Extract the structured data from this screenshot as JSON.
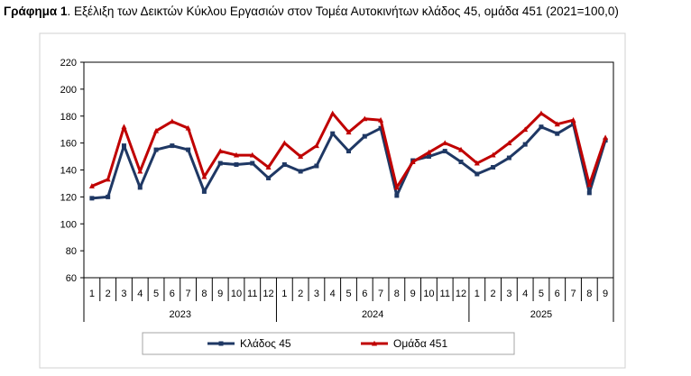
{
  "caption": {
    "label": "Γράφημα 1",
    "text": ". Εξέλιξη των Δεικτών Κύκλου Εργασιών στον Τομέα Αυτοκινήτων κλάδος 45, ομάδα 451 (2021=100,0)"
  },
  "chart_data": {
    "type": "line",
    "title": "",
    "xlabel": "",
    "ylabel": "",
    "ylim": [
      60,
      220
    ],
    "yticks": [
      60,
      80,
      100,
      120,
      140,
      160,
      180,
      200,
      220
    ],
    "grid": false,
    "legend_position": "bottom",
    "categories": [
      "1",
      "2",
      "3",
      "4",
      "5",
      "6",
      "7",
      "8",
      "9",
      "10",
      "11",
      "12",
      "1",
      "2",
      "3",
      "4",
      "5",
      "6",
      "7",
      "8",
      "9",
      "10",
      "11",
      "12",
      "1",
      "2",
      "3",
      "4",
      "5",
      "6",
      "7",
      "8",
      "9"
    ],
    "year_groups": [
      {
        "label": "2023",
        "count": 12
      },
      {
        "label": "2024",
        "count": 12
      },
      {
        "label": "2025",
        "count": 9
      }
    ],
    "series": [
      {
        "name": "Κλάδος 45",
        "color": "#1F3864",
        "marker": "square",
        "values": [
          119,
          120,
          158,
          127,
          155,
          158,
          155,
          124,
          145,
          144,
          145,
          134,
          144,
          139,
          143,
          167,
          154,
          165,
          171,
          121,
          147,
          150,
          154,
          146,
          137,
          142,
          149,
          159,
          172,
          167,
          174,
          123,
          162
        ]
      },
      {
        "name": "Ομάδα 451",
        "color": "#C00000",
        "marker": "triangle",
        "values": [
          128,
          133,
          172,
          139,
          169,
          176,
          171,
          135,
          154,
          151,
          151,
          142,
          160,
          150,
          158,
          182,
          168,
          178,
          177,
          127,
          146,
          153,
          160,
          155,
          145,
          151,
          160,
          170,
          182,
          174,
          177,
          129,
          164
        ]
      }
    ]
  }
}
